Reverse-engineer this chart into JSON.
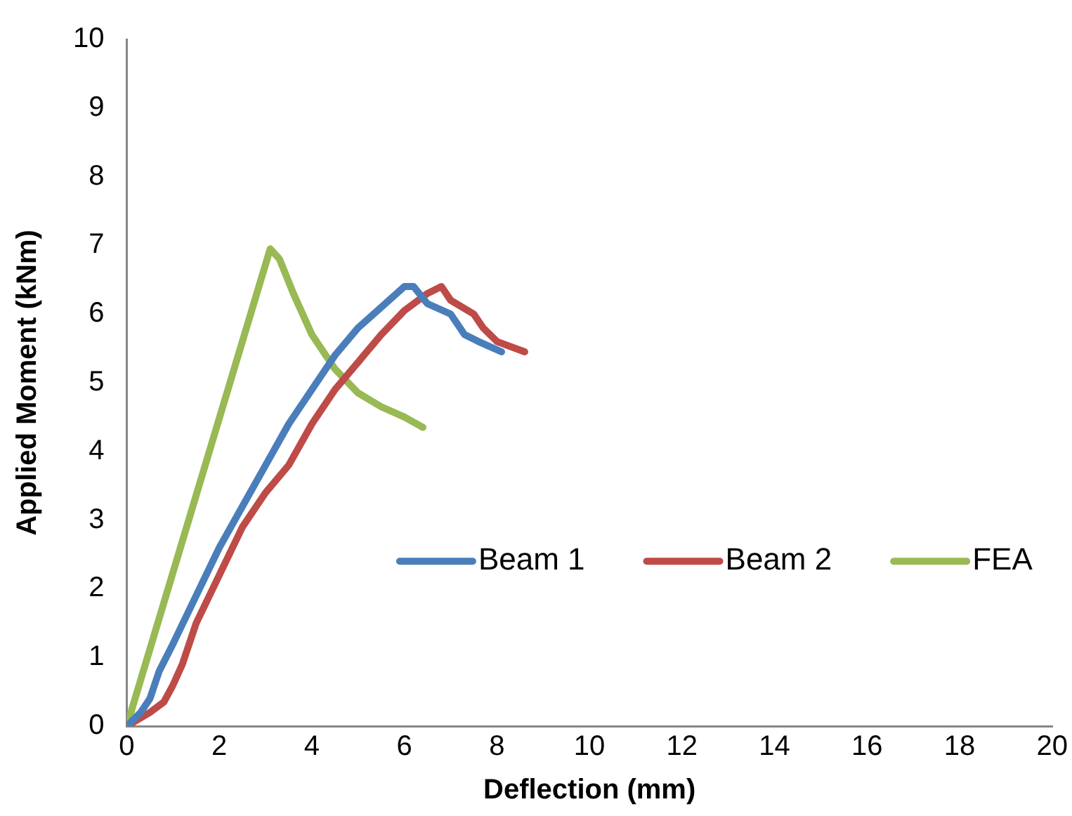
{
  "chart_data": {
    "type": "line",
    "xlabel": "Deflection (mm)",
    "ylabel": "Applied Moment (kNm)",
    "xlim": [
      0,
      20
    ],
    "xticks": [
      0,
      2,
      4,
      6,
      8,
      10,
      12,
      14,
      16,
      18,
      20
    ],
    "ylim": [
      0,
      10
    ],
    "yticks": [
      0,
      1,
      2,
      3,
      4,
      5,
      6,
      7,
      8,
      9,
      10
    ],
    "grid": false,
    "legend": "right",
    "marker": "none",
    "line_style": "solid",
    "series": [
      {
        "name": "Beam 1",
        "color": "#4a7ebb",
        "x": [
          0,
          0.3,
          0.5,
          0.7,
          1,
          1.5,
          2,
          2.5,
          3,
          3.5,
          4,
          4.5,
          5,
          5.5,
          6,
          6.2,
          6.5,
          7,
          7.3,
          7.6,
          8.1
        ],
        "values": [
          0,
          0.2,
          0.4,
          0.8,
          1.2,
          1.9,
          2.6,
          3.2,
          3.8,
          4.4,
          4.9,
          5.4,
          5.8,
          6.1,
          6.4,
          6.4,
          6.15,
          6.0,
          5.7,
          5.6,
          5.45
        ]
      },
      {
        "name": "Beam 2",
        "color": "#be4b48",
        "x": [
          0,
          0.5,
          0.8,
          1,
          1.2,
          1.5,
          2,
          2.5,
          3,
          3.5,
          4,
          4.5,
          5,
          5.5,
          6,
          6.5,
          6.8,
          7,
          7.5,
          7.7,
          8,
          8.6
        ],
        "values": [
          0,
          0.2,
          0.35,
          0.6,
          0.9,
          1.5,
          2.2,
          2.9,
          3.4,
          3.8,
          4.4,
          4.9,
          5.3,
          5.7,
          6.05,
          6.3,
          6.4,
          6.2,
          6.0,
          5.8,
          5.6,
          5.45
        ]
      },
      {
        "name": "FEA",
        "color": "#98b954",
        "x": [
          0,
          3.1,
          3.3,
          3.6,
          4,
          4.5,
          5,
          5.5,
          6,
          6.4
        ],
        "values": [
          0,
          6.95,
          6.8,
          6.3,
          5.7,
          5.2,
          4.85,
          4.65,
          4.5,
          4.35
        ]
      }
    ]
  }
}
